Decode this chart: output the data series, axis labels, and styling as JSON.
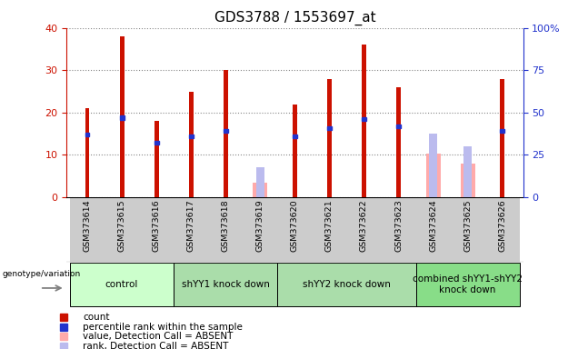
{
  "title": "GDS3788 / 1553697_at",
  "samples": [
    "GSM373614",
    "GSM373615",
    "GSM373616",
    "GSM373617",
    "GSM373618",
    "GSM373619",
    "GSM373620",
    "GSM373621",
    "GSM373622",
    "GSM373623",
    "GSM373624",
    "GSM373625",
    "GSM373626"
  ],
  "count_values": [
    21,
    38,
    18,
    25,
    30,
    0,
    22,
    28,
    36,
    26,
    0,
    0,
    28
  ],
  "percentile_values": [
    37,
    47,
    32,
    36,
    39,
    0,
    36,
    41,
    46,
    42,
    0,
    0,
    39
  ],
  "absent_value_values": [
    0,
    0,
    0,
    0,
    0,
    8.5,
    0,
    0,
    0,
    0,
    26,
    20,
    0
  ],
  "absent_rank_values": [
    0,
    0,
    0,
    0,
    0,
    17.5,
    0,
    0,
    0,
    0,
    37.5,
    30,
    0
  ],
  "groups": [
    {
      "label": "control",
      "start": 0,
      "end": 3,
      "color": "#ccffcc"
    },
    {
      "label": "shYY1 knock down",
      "start": 3,
      "end": 6,
      "color": "#aaddaa"
    },
    {
      "label": "shYY2 knock down",
      "start": 6,
      "end": 10,
      "color": "#aaddaa"
    },
    {
      "label": "combined shYY1-shYY2\nknock down",
      "start": 10,
      "end": 13,
      "color": "#88dd88"
    }
  ],
  "ylim_left": [
    0,
    40
  ],
  "ylim_right": [
    0,
    100
  ],
  "count_color": "#cc1100",
  "percentile_color": "#2233cc",
  "absent_value_color": "#ffaaaa",
  "absent_rank_color": "#bbbbee",
  "bg_color": "#cccccc",
  "left_axis_color": "#cc1100",
  "right_axis_color": "#2233cc",
  "grid_color": "#888888"
}
